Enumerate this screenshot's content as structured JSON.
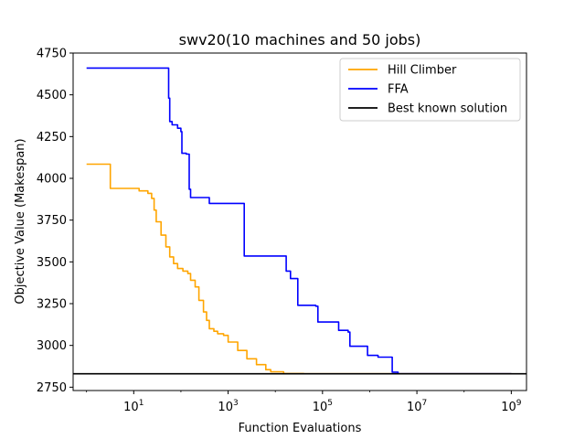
{
  "chart_data": {
    "type": "line",
    "title": "swv20(10 machines and 50 jobs)",
    "xlabel": "Function Evaluations",
    "ylabel": "Objective Value (Makespan)",
    "xscale": "log",
    "xlim": [
      0.52,
      2100000000.0
    ],
    "ylim": [
      2730,
      4750
    ],
    "x_ticks": [
      {
        "value": 10,
        "base": "10",
        "exp": "1"
      },
      {
        "value": 1000,
        "base": "10",
        "exp": "3"
      },
      {
        "value": 100000,
        "base": "10",
        "exp": "5"
      },
      {
        "value": 10000000,
        "base": "10",
        "exp": "7"
      },
      {
        "value": 1000000000,
        "base": "10",
        "exp": "9"
      }
    ],
    "y_ticks": [
      "2750",
      "3000",
      "3250",
      "3500",
      "3750",
      "4000",
      "4250",
      "4500",
      "4750"
    ],
    "grid": false,
    "legend_position": "top-right",
    "series": [
      {
        "name": "Hill Climber",
        "color": "#ffa500",
        "step": true,
        "points": [
          [
            1,
            4085
          ],
          [
            3.2,
            3940
          ],
          [
            10,
            3940
          ],
          [
            13,
            3925
          ],
          [
            20,
            3910
          ],
          [
            24,
            3880
          ],
          [
            27,
            3810
          ],
          [
            30,
            3740
          ],
          [
            38,
            3660
          ],
          [
            48,
            3590
          ],
          [
            58,
            3530
          ],
          [
            70,
            3490
          ],
          [
            85,
            3460
          ],
          [
            110,
            3445
          ],
          [
            140,
            3430
          ],
          [
            160,
            3390
          ],
          [
            200,
            3350
          ],
          [
            240,
            3270
          ],
          [
            300,
            3200
          ],
          [
            350,
            3150
          ],
          [
            400,
            3100
          ],
          [
            500,
            3085
          ],
          [
            600,
            3070
          ],
          [
            800,
            3060
          ],
          [
            1000,
            3020
          ],
          [
            1600,
            2970
          ],
          [
            2500,
            2920
          ],
          [
            4000,
            2885
          ],
          [
            6300,
            2855
          ],
          [
            8000,
            2842
          ],
          [
            15000,
            2832
          ],
          [
            40000,
            2830
          ],
          [
            1000000000.0,
            2830
          ]
        ]
      },
      {
        "name": "FFA",
        "color": "#0000ff",
        "step": true,
        "points": [
          [
            1,
            4660
          ],
          [
            55,
            4480
          ],
          [
            58,
            4340
          ],
          [
            65,
            4320
          ],
          [
            85,
            4300
          ],
          [
            100,
            4280
          ],
          [
            105,
            4150
          ],
          [
            130,
            4145
          ],
          [
            150,
            3935
          ],
          [
            160,
            3885
          ],
          [
            400,
            3850
          ],
          [
            1200,
            3850
          ],
          [
            2200,
            3535
          ],
          [
            15000,
            3535
          ],
          [
            17000,
            3445
          ],
          [
            21000,
            3400
          ],
          [
            28000,
            3400
          ],
          [
            30000,
            3240
          ],
          [
            72000,
            3235
          ],
          [
            80000,
            3140
          ],
          [
            200000,
            3140
          ],
          [
            220000,
            3090
          ],
          [
            350000,
            3080
          ],
          [
            380000,
            2995
          ],
          [
            800000,
            2995
          ],
          [
            900000,
            2940
          ],
          [
            1500000,
            2930
          ],
          [
            3000000,
            2840
          ],
          [
            4000000,
            2830
          ],
          [
            1000000000.0,
            2828
          ]
        ]
      },
      {
        "name": "Best known solution",
        "color": "#000000",
        "step": false,
        "points": [
          [
            0.52,
            2830
          ],
          [
            2100000000.0,
            2830
          ]
        ]
      }
    ]
  }
}
